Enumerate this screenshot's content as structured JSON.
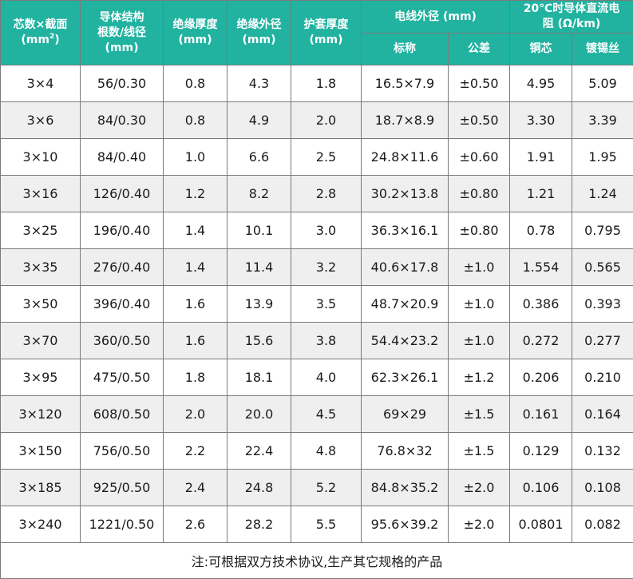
{
  "header": {
    "cores_line1": "芯数×截面",
    "cores_line2_base": "(mm",
    "cores_line2_sup": "2",
    "cores_line2_end": ")",
    "conductor_line1": "导体结构",
    "conductor_line2": "根数/线径",
    "conductor_line3": "(mm)",
    "insulation_thickness_line1": "绝缘厚度",
    "insulation_thickness_line2": "(mm)",
    "insulation_od_line1": "绝缘外径",
    "insulation_od_line2": "(mm)",
    "sheath_thickness_line1": "护套厚度",
    "sheath_thickness_line2": "(mm)",
    "wire_od": "电线外径 (mm)",
    "nominal": "标称",
    "tolerance": "公差",
    "resistance_line1": "20℃时导体直流电",
    "resistance_line2": "阻 (Ω/km)",
    "copper": "铜芯",
    "tinned": "镀锡丝"
  },
  "rows": [
    {
      "spec": "3×4",
      "conductor": "56/0.30",
      "ins_t": "0.8",
      "ins_od": "4.3",
      "sheath_t": "1.8",
      "nominal": "16.5×7.9",
      "tolerance": "±0.50",
      "copper": "4.95",
      "tinned": "5.09"
    },
    {
      "spec": "3×6",
      "conductor": "84/0.30",
      "ins_t": "0.8",
      "ins_od": "4.9",
      "sheath_t": "2.0",
      "nominal": "18.7×8.9",
      "tolerance": "±0.50",
      "copper": "3.30",
      "tinned": "3.39"
    },
    {
      "spec": "3×10",
      "conductor": "84/0.40",
      "ins_t": "1.0",
      "ins_od": "6.6",
      "sheath_t": "2.5",
      "nominal": "24.8×11.6",
      "tolerance": "±0.60",
      "copper": "1.91",
      "tinned": "1.95"
    },
    {
      "spec": "3×16",
      "conductor": "126/0.40",
      "ins_t": "1.2",
      "ins_od": "8.2",
      "sheath_t": "2.8",
      "nominal": "30.2×13.8",
      "tolerance": "±0.80",
      "copper": "1.21",
      "tinned": "1.24"
    },
    {
      "spec": "3×25",
      "conductor": "196/0.40",
      "ins_t": "1.4",
      "ins_od": "10.1",
      "sheath_t": "3.0",
      "nominal": "36.3×16.1",
      "tolerance": "±0.80",
      "copper": "0.78",
      "tinned": "0.795"
    },
    {
      "spec": "3×35",
      "conductor": "276/0.40",
      "ins_t": "1.4",
      "ins_od": "11.4",
      "sheath_t": "3.2",
      "nominal": "40.6×17.8",
      "tolerance": "±1.0",
      "copper": "1.554",
      "tinned": "0.565"
    },
    {
      "spec": "3×50",
      "conductor": "396/0.40",
      "ins_t": "1.6",
      "ins_od": "13.9",
      "sheath_t": "3.5",
      "nominal": "48.7×20.9",
      "tolerance": "±1.0",
      "copper": "0.386",
      "tinned": "0.393"
    },
    {
      "spec": "3×70",
      "conductor": "360/0.50",
      "ins_t": "1.6",
      "ins_od": "15.6",
      "sheath_t": "3.8",
      "nominal": "54.4×23.2",
      "tolerance": "±1.0",
      "copper": "0.272",
      "tinned": "0.277"
    },
    {
      "spec": "3×95",
      "conductor": "475/0.50",
      "ins_t": "1.8",
      "ins_od": "18.1",
      "sheath_t": "4.0",
      "nominal": "62.3×26.1",
      "tolerance": "±1.2",
      "copper": "0.206",
      "tinned": "0.210"
    },
    {
      "spec": "3×120",
      "conductor": "608/0.50",
      "ins_t": "2.0",
      "ins_od": "20.0",
      "sheath_t": "4.5",
      "nominal": "69×29",
      "tolerance": "±1.5",
      "copper": "0.161",
      "tinned": "0.164"
    },
    {
      "spec": "3×150",
      "conductor": "756/0.50",
      "ins_t": "2.2",
      "ins_od": "22.4",
      "sheath_t": "4.8",
      "nominal": "76.8×32",
      "tolerance": "±1.5",
      "copper": "0.129",
      "tinned": "0.132"
    },
    {
      "spec": "3×185",
      "conductor": "925/0.50",
      "ins_t": "2.4",
      "ins_od": "24.8",
      "sheath_t": "5.2",
      "nominal": "84.8×35.2",
      "tolerance": "±2.0",
      "copper": "0.106",
      "tinned": "0.108"
    },
    {
      "spec": "3×240",
      "conductor": "1221/0.50",
      "ins_t": "2.6",
      "ins_od": "28.2",
      "sheath_t": "5.5",
      "nominal": "95.6×39.2",
      "tolerance": "±2.0",
      "copper": "0.0801",
      "tinned": "0.082"
    }
  ],
  "note": "注:可根据双方技术协议,生产其它规格的产品",
  "colors": {
    "header_bg": "#21b2a0",
    "header_text": "#ffffff",
    "stripe_bg": "#efefef",
    "border": "#7a7a7a"
  }
}
